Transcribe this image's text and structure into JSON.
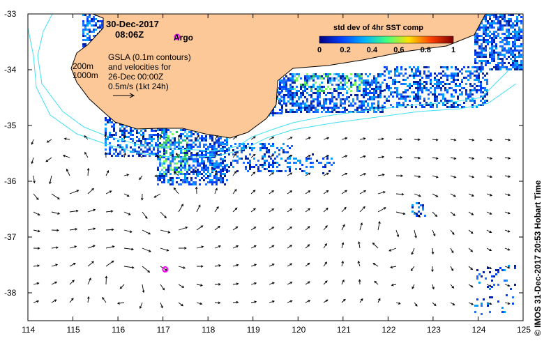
{
  "map": {
    "date_line": "30-Dec-2017",
    "time_line": "08:06Z",
    "legend": {
      "argo_label": "Argo",
      "contour_200": "200m",
      "contour_1000": "1000m",
      "gsla_lines": [
        "GSLA (0.1m contours)",
        "and velocities for",
        "26-Dec 00:00Z",
        "0.5m/s (1kt 24h)"
      ]
    },
    "colorbar": {
      "title": "std dev of 4hr SST comp",
      "ticks": [
        "0",
        "0.2",
        "0.4",
        "0.6",
        "0.8",
        "1"
      ],
      "colors": [
        "#000080",
        "#0040ff",
        "#00b0ff",
        "#40ff80",
        "#ffe000",
        "#ff4000",
        "#800000"
      ]
    },
    "credit": "© IMOS 31-Dec-2017 20:53 Hobart Time",
    "x_ticks": [
      "114",
      "115",
      "116",
      "117",
      "118",
      "119",
      "120",
      "121",
      "122",
      "123",
      "124",
      "125"
    ],
    "y_ticks": [
      "-33",
      "-34",
      "-35",
      "-36",
      "-37",
      "-38"
    ],
    "lon_range": [
      114,
      125
    ],
    "lat_range": [
      -38.5,
      -33
    ],
    "land_color": "#fcc898",
    "coast_contour_color": "#40e0f0",
    "argo_color": "#ff00ff",
    "argo_float": {
      "lon": 117.05,
      "lat": -37.58
    }
  }
}
